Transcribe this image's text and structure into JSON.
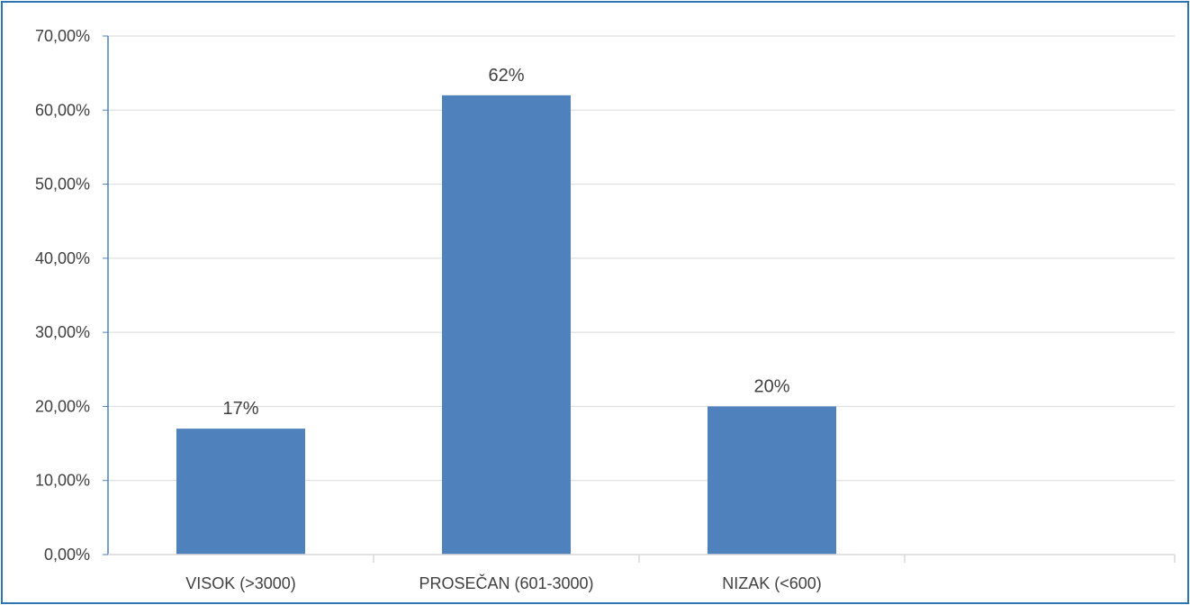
{
  "chart_data": {
    "type": "bar",
    "categories": [
      "VISOK (>3000)",
      "PROSEČAN (601-3000)",
      "NIZAK (<600)"
    ],
    "values": [
      17,
      62,
      20
    ],
    "data_labels": [
      "17%",
      "62%",
      "20%"
    ],
    "title": "",
    "xlabel": "",
    "ylabel": "",
    "ylim": [
      0,
      70
    ],
    "y_ticks": [
      0,
      10,
      20,
      30,
      40,
      50,
      60,
      70
    ],
    "y_tick_labels": [
      "0,00%",
      "10,00%",
      "20,00%",
      "30,00%",
      "40,00%",
      "50,00%",
      "60,00%",
      "70,00%"
    ],
    "grid": true,
    "legend": "none",
    "colors": {
      "bar": "#4f81bd",
      "grid": "#d9d9d9",
      "axis": "#4f81bd",
      "frame": "#2e75b6",
      "text": "#404040"
    }
  }
}
